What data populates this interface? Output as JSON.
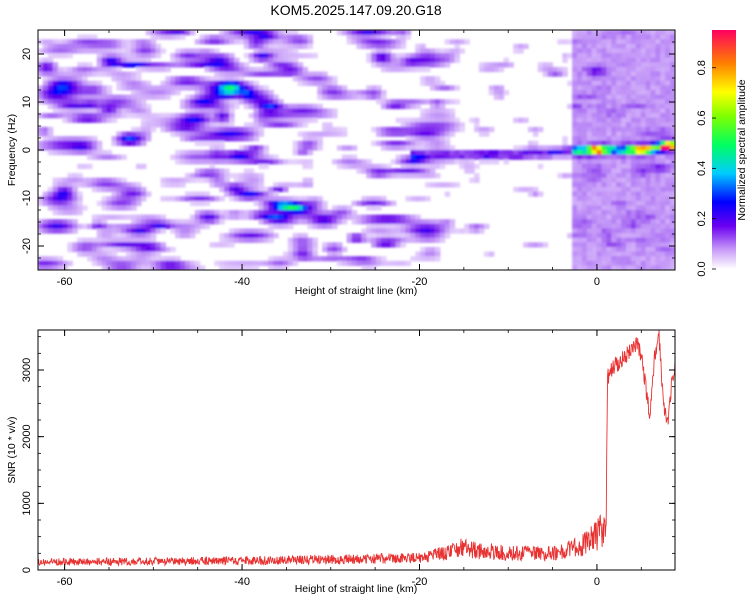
{
  "figure": {
    "title": "KOM5.2025.147.09.20.G18"
  },
  "chart_data": [
    {
      "type": "heatmap",
      "title": "KOM5.2025.147.09.20.G18",
      "xlabel": "Height of straight line (km)",
      "ylabel": "Frequency (Hz)",
      "xlim": [
        -63,
        8.8
      ],
      "ylim": [
        -25,
        25
      ],
      "x_ticks": [
        -60,
        -40,
        -20,
        0
      ],
      "y_ticks": [
        20,
        10,
        0,
        -10,
        -20
      ],
      "x_tick_labels": [
        "-60",
        "-40",
        "-20",
        "0"
      ],
      "y_tick_labels": [
        "20",
        "10",
        "0",
        "-10",
        "-20"
      ],
      "description_of_signal": {
        "noise_region_x": [
          -63,
          -20
        ],
        "signal_band_x": [
          -21,
          8.8
        ],
        "signal_frequency_center": [
          [
            -20,
            -1
          ],
          [
            -15,
            -1
          ],
          [
            -10,
            -1
          ],
          [
            -5,
            -0.5
          ],
          [
            0,
            0
          ],
          [
            5,
            0
          ],
          [
            8.8,
            1
          ]
        ],
        "peaks": [
          [
            0,
            0,
            0.95
          ],
          [
            5,
            0,
            0.9
          ],
          [
            8,
            0.8,
            1.0
          ]
        ]
      },
      "colorbar": {
        "label": "Normalized spectral amplitude",
        "range": [
          0,
          0.95
        ],
        "ticks": [
          0.0,
          0.2,
          0.4,
          0.6,
          0.8
        ],
        "tick_labels": [
          "0.0",
          "0.2",
          "0.4",
          "0.6",
          "0.8"
        ]
      }
    },
    {
      "type": "line",
      "xlabel": "Height of straight line (km)",
      "ylabel": "SNR (10 * v/v)",
      "xlim": [
        -63,
        8.8
      ],
      "ylim": [
        0,
        3600
      ],
      "x_ticks": [
        -60,
        -40,
        -20,
        0
      ],
      "x_tick_labels": [
        "-60",
        "-40",
        "-20",
        "0"
      ],
      "y_ticks": [
        0,
        1000,
        2000,
        3000
      ],
      "y_tick_labels": [
        "0",
        "1000",
        "2000",
        "3000"
      ],
      "color": "#e83232",
      "envelope_x": [
        -63,
        -40,
        -20,
        -17,
        -15,
        -14,
        -12,
        -10,
        -5,
        -2,
        0,
        1,
        1.2,
        2,
        3,
        4,
        4.5,
        5,
        6,
        6.5,
        7,
        7.5,
        8,
        8.5,
        8.8
      ],
      "envelope_y": [
        120,
        140,
        180,
        260,
        350,
        300,
        280,
        250,
        260,
        350,
        520,
        650,
        2900,
        3050,
        3200,
        3300,
        3450,
        3200,
        2300,
        3200,
        3500,
        2500,
        2200,
        2900,
        3100
      ]
    }
  ]
}
